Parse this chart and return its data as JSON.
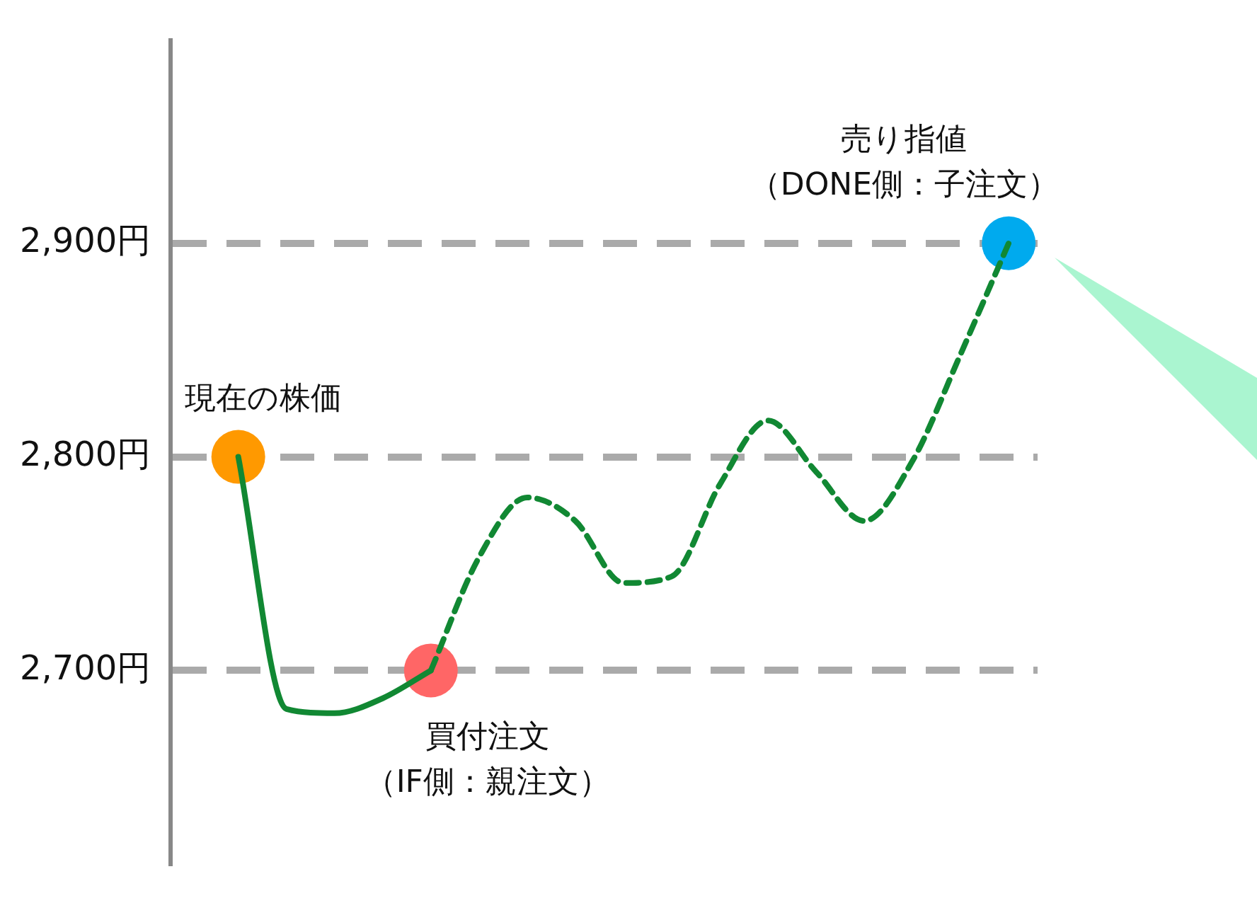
{
  "chart_data": {
    "type": "line",
    "categories": [
      null,
      null,
      null,
      null,
      null,
      null,
      null,
      null,
      null,
      null,
      null,
      null,
      null,
      null,
      null,
      null,
      null
    ],
    "series": [
      {
        "color": "#118833",
        "line_style": "solid",
        "values": [
          2800,
          2682,
          2680,
          2687,
          2700,
          null,
          null,
          null,
          null,
          null,
          null,
          null,
          null,
          null,
          null,
          null,
          null
        ]
      },
      {
        "color": "#118833",
        "line_style": "dashed",
        "values": [
          null,
          null,
          null,
          null,
          2700,
          2753,
          2781,
          2770,
          2741,
          2744,
          2787,
          2817,
          2793,
          2770,
          2798,
          2848,
          2900
        ]
      },
      {
        "type": "scatter",
        "marker": "circle",
        "color": "#ff9900",
        "values": [
          2800,
          null,
          null,
          null,
          null,
          null,
          null,
          null,
          null,
          null,
          null,
          null,
          null,
          null,
          null,
          null,
          null
        ]
      },
      {
        "type": "scatter",
        "marker": "circle",
        "color": "#ff6666",
        "values": [
          null,
          null,
          null,
          null,
          2700,
          null,
          null,
          null,
          null,
          null,
          null,
          null,
          null,
          null,
          null,
          null,
          null
        ]
      },
      {
        "type": "scatter",
        "marker": "circle",
        "color": "#00aaee",
        "values": [
          null,
          null,
          null,
          null,
          null,
          null,
          null,
          null,
          null,
          null,
          null,
          null,
          null,
          null,
          null,
          null,
          2900
        ]
      }
    ],
    "ylim": [
      2610,
      2995
    ],
    "yticks": [
      {
        "value": 2700,
        "label": "2,700円"
      },
      {
        "value": 2800,
        "label": "2,800円"
      },
      {
        "value": 2900,
        "label": "2,900円"
      }
    ],
    "grid": "y",
    "tick_labels": "y",
    "annotations": [
      "現在の株価",
      "買付注文",
      "（IF側：親注文）",
      "売り指値",
      "（DONE側：子注文）"
    ]
  }
}
